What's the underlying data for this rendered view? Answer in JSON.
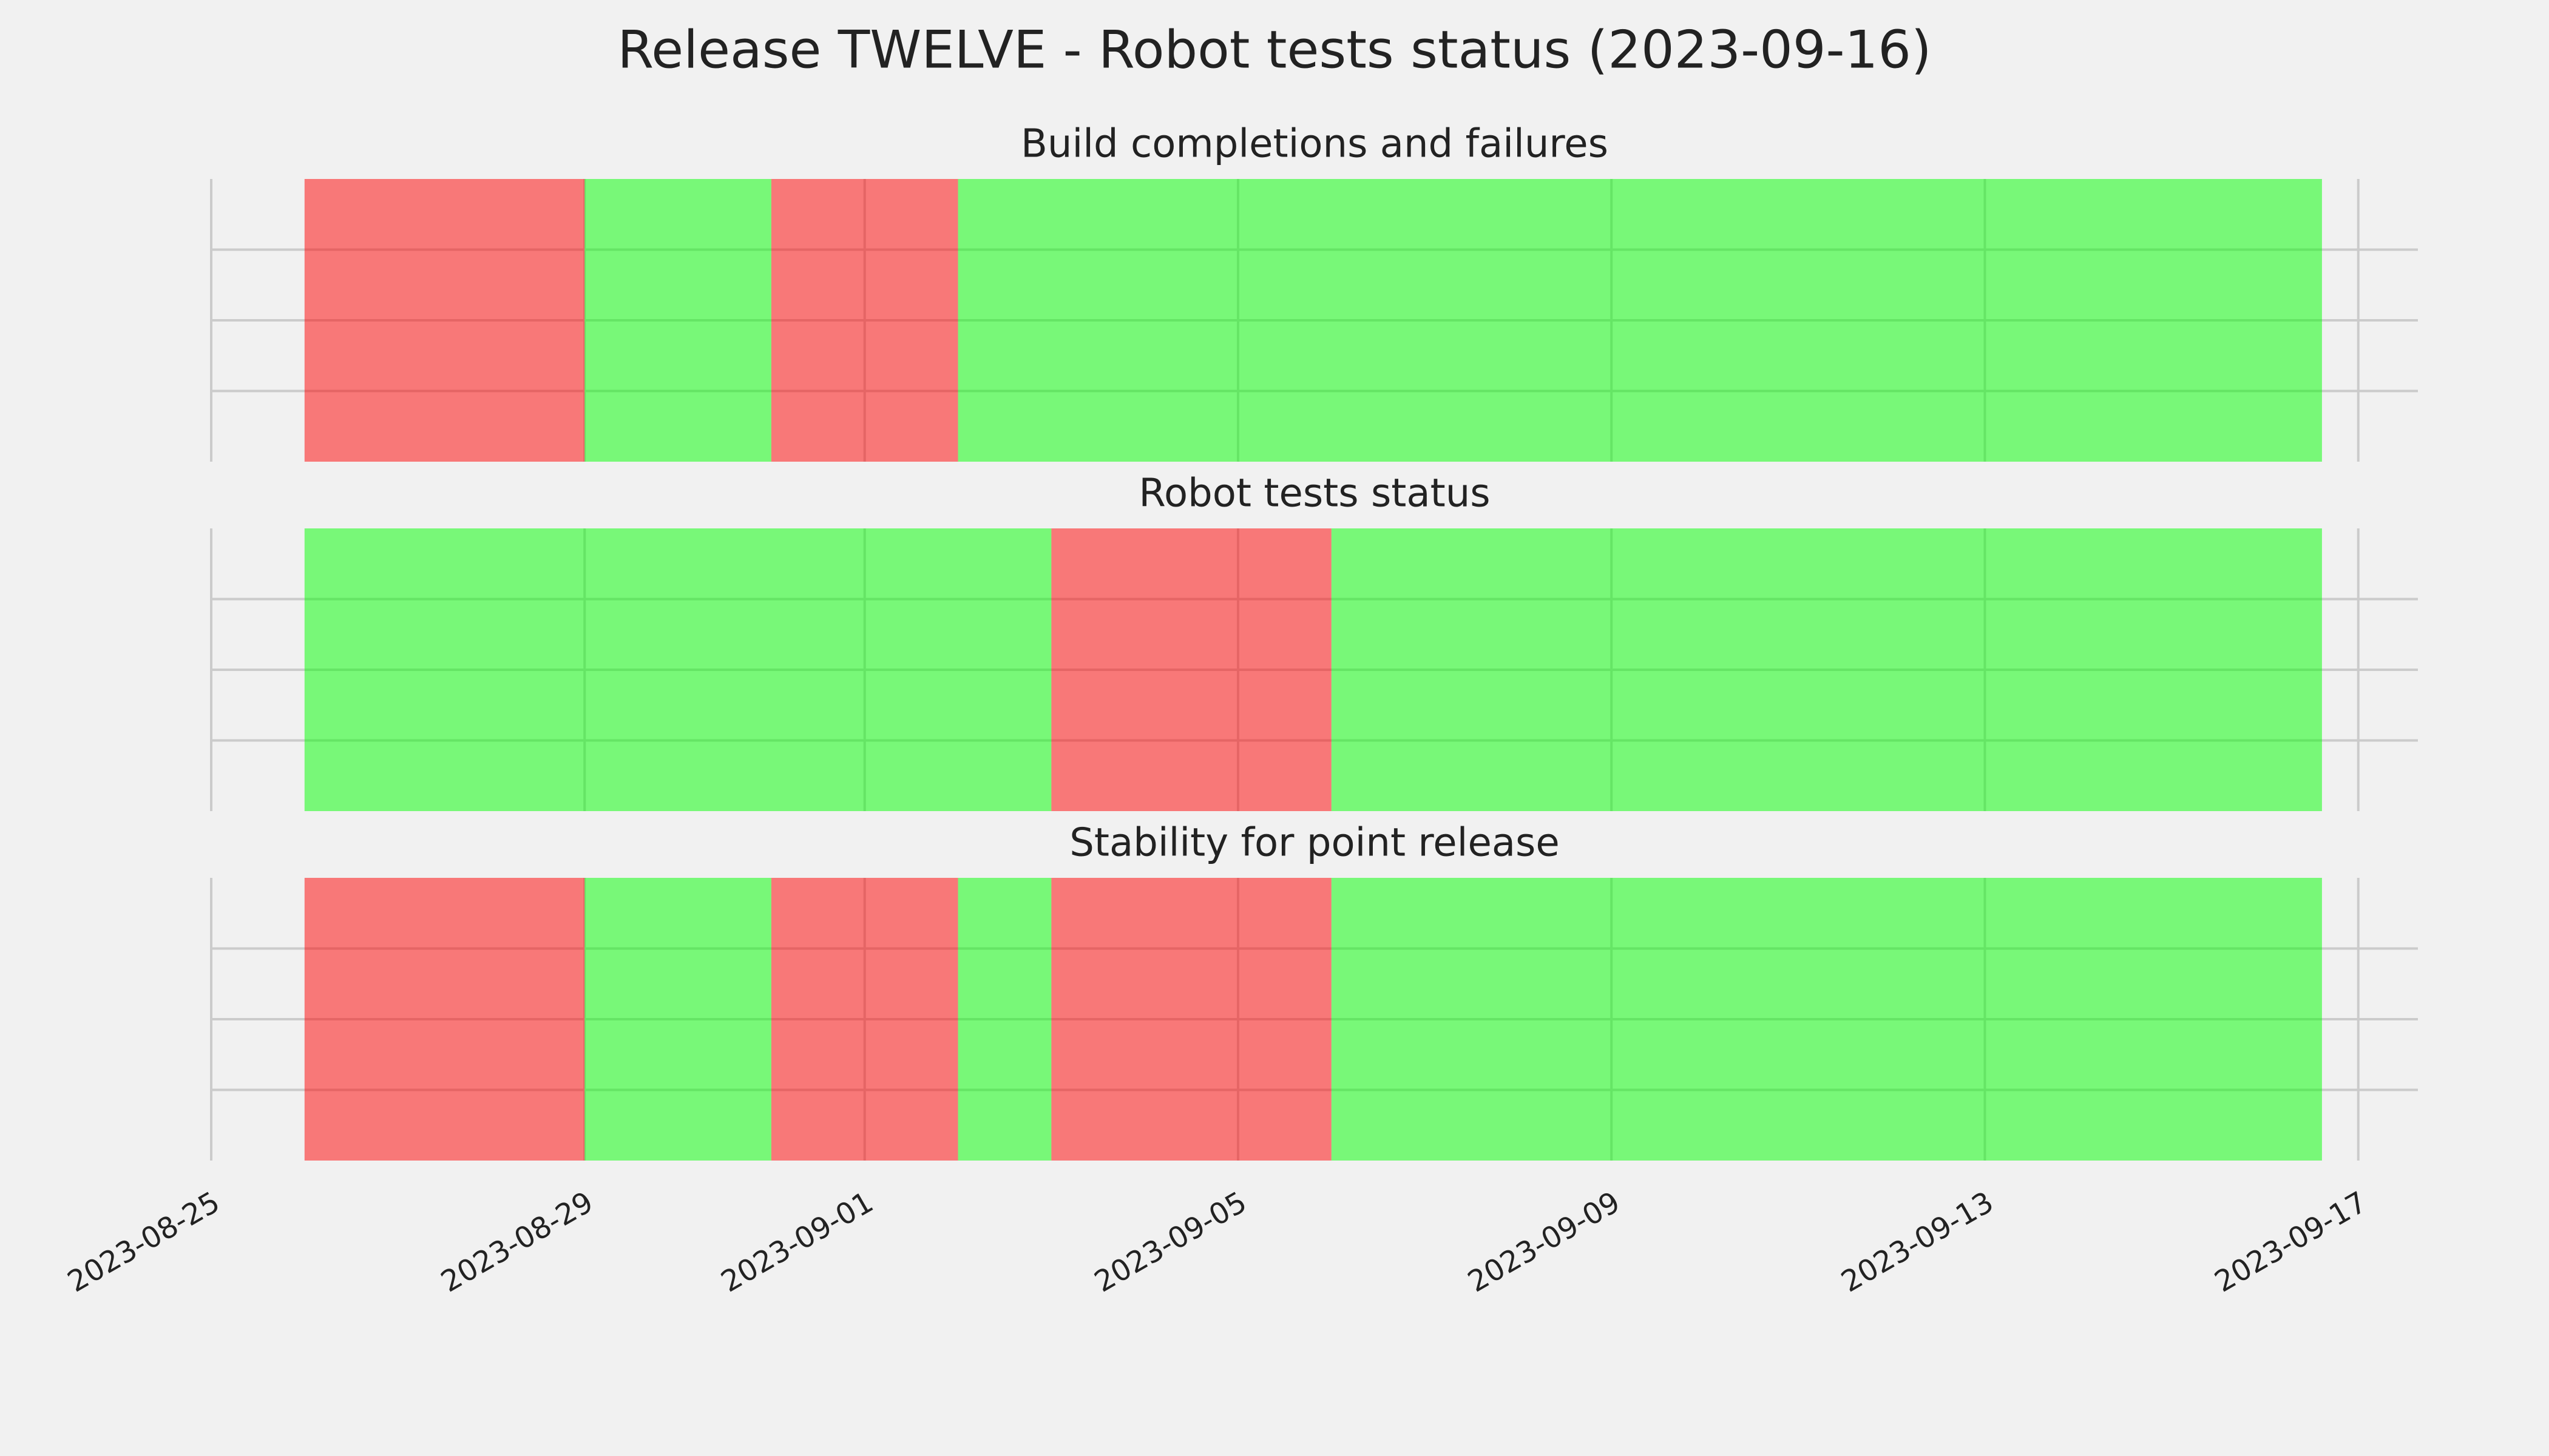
{
  "title": "Release TWELVE - Robot tests status (2023-09-16)",
  "chart_data": [
    {
      "type": "span",
      "title": "Build completions and failures",
      "spans": [
        {
          "start": "2023-08-26",
          "end": "2023-08-29",
          "color": "#ff0000"
        },
        {
          "start": "2023-08-29",
          "end": "2023-08-31",
          "color": "#00ff00"
        },
        {
          "start": "2023-08-31",
          "end": "2023-09-02",
          "color": "#ff0000"
        },
        {
          "start": "2023-09-02",
          "end": "2023-09-16T14:40",
          "color": "#00ff00"
        }
      ],
      "alpha": 0.5,
      "xlim": [
        "2023-08-25",
        "2023-09-17T15:20"
      ],
      "xticks": [
        "2023-08-25",
        "2023-08-29",
        "2023-09-01",
        "2023-09-05",
        "2023-09-09",
        "2023-09-13",
        "2023-09-17"
      ],
      "ylim": [
        0,
        1
      ],
      "yticks": [
        0.25,
        0.5,
        0.75
      ],
      "grid": true
    },
    {
      "type": "span",
      "title": "Robot tests status",
      "spans": [
        {
          "start": "2023-08-26",
          "end": "2023-09-03",
          "color": "#00ff00"
        },
        {
          "start": "2023-09-03",
          "end": "2023-09-06",
          "color": "#ff0000"
        },
        {
          "start": "2023-09-06",
          "end": "2023-09-16T14:40",
          "color": "#00ff00"
        }
      ],
      "alpha": 0.5,
      "xlim": [
        "2023-08-25",
        "2023-09-17T15:20"
      ],
      "xticks": [
        "2023-08-25",
        "2023-08-29",
        "2023-09-01",
        "2023-09-05",
        "2023-09-09",
        "2023-09-13",
        "2023-09-17"
      ],
      "ylim": [
        0,
        1
      ],
      "yticks": [
        0.25,
        0.5,
        0.75
      ],
      "grid": true
    },
    {
      "type": "span",
      "title": "Stability for point release",
      "spans": [
        {
          "start": "2023-08-26",
          "end": "2023-08-29",
          "color": "#ff0000"
        },
        {
          "start": "2023-08-29",
          "end": "2023-08-31",
          "color": "#00ff00"
        },
        {
          "start": "2023-08-31",
          "end": "2023-09-02",
          "color": "#ff0000"
        },
        {
          "start": "2023-09-02",
          "end": "2023-09-03",
          "color": "#00ff00"
        },
        {
          "start": "2023-09-03",
          "end": "2023-09-06",
          "color": "#ff0000"
        },
        {
          "start": "2023-09-06",
          "end": "2023-09-16T14:40",
          "color": "#00ff00"
        }
      ],
      "alpha": 0.5,
      "xlim": [
        "2023-08-25",
        "2023-09-17T15:20"
      ],
      "xticks": [
        "2023-08-25",
        "2023-08-29",
        "2023-09-01",
        "2023-09-05",
        "2023-09-09",
        "2023-09-13",
        "2023-09-17"
      ],
      "xtick_labels_shown": true,
      "ylim": [
        0,
        1
      ],
      "yticks": [
        0.25,
        0.5,
        0.75
      ],
      "grid": true
    }
  ]
}
